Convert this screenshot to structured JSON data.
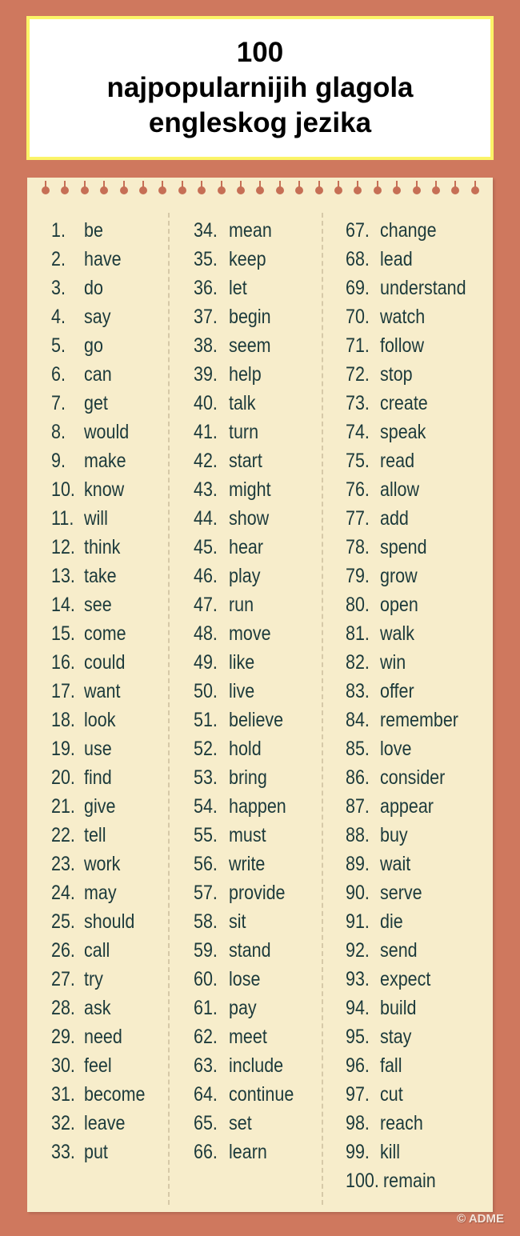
{
  "title": {
    "line1": "100",
    "line2": "najpopularnijih glagola",
    "line3": "engleskog jezika"
  },
  "colors": {
    "background": "#cf785e",
    "paper": "#f7edcb",
    "title_border": "#fbf468",
    "text": "#1c3a3b"
  },
  "verbs": [
    "be",
    "have",
    "do",
    "say",
    "go",
    "can",
    "get",
    "would",
    "make",
    "know",
    "will",
    "think",
    "take",
    "see",
    "come",
    "could",
    "want",
    "look",
    "use",
    "find",
    "give",
    "tell",
    "work",
    "may",
    "should",
    "call",
    "try",
    "ask",
    "need",
    "feel",
    "become",
    "leave",
    "put",
    "mean",
    "keep",
    "let",
    "begin",
    "seem",
    "help",
    "talk",
    "turn",
    "start",
    "might",
    "show",
    "hear",
    "play",
    "run",
    "move",
    "like",
    "live",
    "believe",
    "hold",
    "bring",
    "happen",
    "must",
    "write",
    "provide",
    "sit",
    "stand",
    "lose",
    "pay",
    "meet",
    "include",
    "continue",
    "set",
    "learn",
    "change",
    "lead",
    "understand",
    "watch",
    "follow",
    "stop",
    "create",
    "speak",
    "read",
    "allow",
    "add",
    "spend",
    "grow",
    "open",
    "walk",
    "win",
    "offer",
    "remember",
    "love",
    "consider",
    "appear",
    "buy",
    "wait",
    "serve",
    "die",
    "send",
    "expect",
    "build",
    "stay",
    "fall",
    "cut",
    "reach",
    "kill",
    "remain"
  ],
  "credit": "© ADME"
}
